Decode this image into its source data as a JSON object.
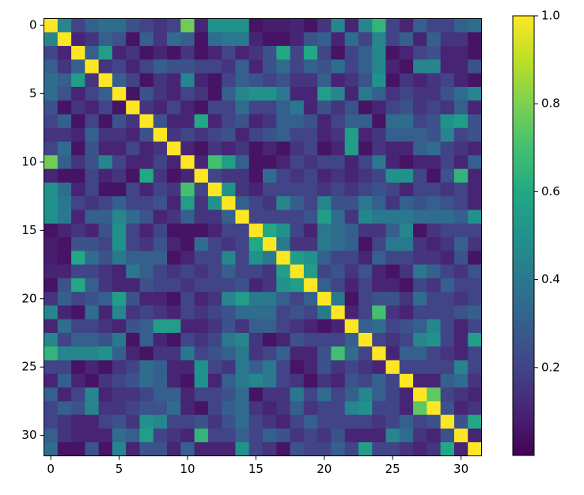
{
  "chart_data": {
    "type": "heatmap",
    "colormap": "viridis",
    "xlim": [
      -0.5,
      31.5
    ],
    "ylim": [
      -0.5,
      31.5
    ],
    "xticks": [
      0,
      5,
      10,
      15,
      20,
      25,
      30
    ],
    "yticks": [
      0,
      5,
      10,
      15,
      20,
      25,
      30
    ],
    "clim": [
      0,
      1
    ],
    "colorbar_ticks": [
      0.2,
      0.4,
      0.6,
      0.8,
      {
        "value": 1,
        "label": "1.0"
      }
    ],
    "values": [
      [
        1,
        0.45,
        0.2,
        0.3,
        0.35,
        0.35,
        0.25,
        0.2,
        0.15,
        0.2,
        0.78,
        0.1,
        0.5,
        0.5,
        0.5,
        0.05,
        0.08,
        0.08,
        0.1,
        0.05,
        0.15,
        0.45,
        0.1,
        0.45,
        0.65,
        0.2,
        0.1,
        0.3,
        0.2,
        0.2,
        0.3,
        0.35
      ],
      [
        0.45,
        1,
        0.1,
        0.15,
        0.3,
        0.25,
        0.05,
        0.3,
        0.15,
        0.35,
        0.3,
        0.05,
        0.35,
        0.4,
        0.4,
        0.1,
        0.05,
        0.05,
        0.1,
        0.25,
        0.3,
        0.1,
        0.35,
        0.2,
        0.45,
        0.2,
        0.3,
        0.1,
        0.3,
        0.15,
        0.15,
        0.05
      ],
      [
        0.2,
        0.1,
        1,
        0.3,
        0.55,
        0.1,
        0.15,
        0.05,
        0.1,
        0.05,
        0.15,
        0.05,
        0.1,
        0.2,
        0.1,
        0.15,
        0.25,
        0.6,
        0.2,
        0.6,
        0.2,
        0.05,
        0.2,
        0.3,
        0.45,
        0.05,
        0.1,
        0.2,
        0.25,
        0.1,
        0.1,
        0.05
      ],
      [
        0.3,
        0.15,
        0.3,
        1,
        0.15,
        0.2,
        0.1,
        0.2,
        0.3,
        0.25,
        0.25,
        0.2,
        0.2,
        0.15,
        0.3,
        0.1,
        0.25,
        0.35,
        0.2,
        0.3,
        0.25,
        0.35,
        0.2,
        0.3,
        0.45,
        0.1,
        0.05,
        0.45,
        0.45,
        0.1,
        0.1,
        0.25
      ],
      [
        0.35,
        0.3,
        0.55,
        0.15,
        1,
        0.3,
        0.2,
        0.05,
        0.15,
        0.1,
        0.45,
        0.1,
        0.05,
        0.2,
        0.3,
        0.25,
        0.2,
        0.25,
        0.15,
        0.15,
        0.3,
        0.1,
        0.15,
        0.25,
        0.5,
        0.05,
        0.15,
        0.1,
        0.15,
        0.2,
        0.1,
        0.05
      ],
      [
        0.35,
        0.25,
        0.1,
        0.2,
        0.3,
        1,
        0.05,
        0.25,
        0.15,
        0.1,
        0.2,
        0.15,
        0.05,
        0.3,
        0.45,
        0.5,
        0.5,
        0.4,
        0.1,
        0.1,
        0.55,
        0.45,
        0.1,
        0.4,
        0.3,
        0.15,
        0.2,
        0.15,
        0.15,
        0.25,
        0.35,
        0.45
      ],
      [
        0.25,
        0.05,
        0.15,
        0.1,
        0.2,
        0.05,
        1,
        0.15,
        0.1,
        0.2,
        0.1,
        0.05,
        0.2,
        0.2,
        0.35,
        0.2,
        0.2,
        0.3,
        0.4,
        0.1,
        0.25,
        0.15,
        0.25,
        0.05,
        0.1,
        0.2,
        0.25,
        0.15,
        0.2,
        0.15,
        0.3,
        0.1
      ],
      [
        0.2,
        0.3,
        0.05,
        0.2,
        0.05,
        0.25,
        0.15,
        1,
        0.25,
        0.1,
        0.1,
        0.6,
        0.1,
        0.2,
        0.25,
        0.1,
        0.15,
        0.3,
        0.3,
        0.25,
        0.1,
        0.2,
        0.3,
        0.3,
        0.05,
        0.35,
        0.35,
        0.2,
        0.25,
        0.5,
        0.55,
        0.25
      ],
      [
        0.15,
        0.15,
        0.1,
        0.3,
        0.15,
        0.15,
        0.1,
        0.25,
        1,
        0.15,
        0.2,
        0.15,
        0.2,
        0.25,
        0.1,
        0.2,
        0.25,
        0.3,
        0.2,
        0.2,
        0.1,
        0.15,
        0.55,
        0.1,
        0.15,
        0.3,
        0.3,
        0.3,
        0.25,
        0.45,
        0.2,
        0.25
      ],
      [
        0.2,
        0.35,
        0.05,
        0.25,
        0.1,
        0.1,
        0.2,
        0.1,
        0.15,
        1,
        0.1,
        0.05,
        0.15,
        0.1,
        0.15,
        0.05,
        0.1,
        0.05,
        0.15,
        0.2,
        0.05,
        0.1,
        0.55,
        0.05,
        0.15,
        0.1,
        0.1,
        0.3,
        0.35,
        0.2,
        0.15,
        0.1
      ],
      [
        0.78,
        0.3,
        0.15,
        0.25,
        0.45,
        0.2,
        0.1,
        0.1,
        0.2,
        0.1,
        1,
        0.1,
        0.7,
        0.55,
        0.3,
        0.05,
        0.05,
        0.1,
        0.2,
        0.15,
        0.2,
        0.2,
        0.1,
        0.2,
        0.4,
        0.1,
        0.05,
        0.1,
        0.1,
        0.2,
        0.1,
        0.3
      ],
      [
        0.1,
        0.05,
        0.05,
        0.2,
        0.1,
        0.15,
        0.05,
        0.6,
        0.15,
        0.05,
        0.1,
        1,
        0.2,
        0.15,
        0.15,
        0.05,
        0.35,
        0.2,
        0.15,
        0.2,
        0.1,
        0.15,
        0.1,
        0.15,
        0.2,
        0.5,
        0.5,
        0.2,
        0.05,
        0.25,
        0.65,
        0.1
      ],
      [
        0.5,
        0.35,
        0.1,
        0.2,
        0.05,
        0.05,
        0.2,
        0.1,
        0.2,
        0.15,
        0.7,
        0.2,
        1,
        0.5,
        0.15,
        0.1,
        0.2,
        0.2,
        0.2,
        0.2,
        0.15,
        0.2,
        0.15,
        0.2,
        0.25,
        0.2,
        0.1,
        0.2,
        0.2,
        0.15,
        0.2,
        0.1
      ],
      [
        0.5,
        0.4,
        0.2,
        0.15,
        0.2,
        0.3,
        0.2,
        0.2,
        0.25,
        0.1,
        0.55,
        0.15,
        0.5,
        1,
        0.3,
        0.2,
        0.15,
        0.45,
        0.3,
        0.2,
        0.45,
        0.25,
        0.25,
        0.4,
        0.3,
        0.15,
        0.3,
        0.25,
        0.3,
        0.25,
        0.2,
        0.1
      ],
      [
        0.5,
        0.4,
        0.1,
        0.3,
        0.3,
        0.45,
        0.35,
        0.25,
        0.1,
        0.15,
        0.3,
        0.15,
        0.15,
        0.3,
        1,
        0.2,
        0.2,
        0.2,
        0.2,
        0.25,
        0.55,
        0.35,
        0.15,
        0.45,
        0.4,
        0.4,
        0.4,
        0.35,
        0.35,
        0.35,
        0.3,
        0.5
      ],
      [
        0.05,
        0.1,
        0.15,
        0.1,
        0.25,
        0.5,
        0.2,
        0.1,
        0.2,
        0.05,
        0.05,
        0.05,
        0.1,
        0.2,
        0.2,
        1,
        0.6,
        0.5,
        0.2,
        0.1,
        0.4,
        0.35,
        0.3,
        0.15,
        0.15,
        0.3,
        0.45,
        0.05,
        0.15,
        0.2,
        0.2,
        0.2
      ],
      [
        0.08,
        0.05,
        0.25,
        0.25,
        0.2,
        0.5,
        0.2,
        0.15,
        0.25,
        0.1,
        0.05,
        0.35,
        0.2,
        0.15,
        0.2,
        0.6,
        1,
        0.4,
        0.15,
        0.15,
        0.4,
        0.35,
        0.3,
        0.05,
        0.2,
        0.4,
        0.4,
        0.15,
        0.1,
        0.15,
        0.3,
        0.15
      ],
      [
        0.08,
        0.05,
        0.6,
        0.35,
        0.25,
        0.4,
        0.3,
        0.3,
        0.3,
        0.05,
        0.1,
        0.2,
        0.2,
        0.45,
        0.2,
        0.5,
        0.4,
        1,
        0.55,
        0.5,
        0.3,
        0.2,
        0.2,
        0.1,
        0.3,
        0.2,
        0.2,
        0.15,
        0.15,
        0.1,
        0.25,
        0.05
      ],
      [
        0.1,
        0.1,
        0.2,
        0.2,
        0.15,
        0.1,
        0.4,
        0.3,
        0.2,
        0.15,
        0.2,
        0.15,
        0.2,
        0.3,
        0.2,
        0.2,
        0.15,
        0.55,
        1,
        0.55,
        0.2,
        0.25,
        0.15,
        0.25,
        0.1,
        0.05,
        0.15,
        0.4,
        0.3,
        0.2,
        0.15,
        0.25
      ],
      [
        0.05,
        0.25,
        0.6,
        0.3,
        0.15,
        0.1,
        0.1,
        0.25,
        0.2,
        0.2,
        0.15,
        0.2,
        0.2,
        0.2,
        0.25,
        0.1,
        0.15,
        0.5,
        0.55,
        1,
        0.3,
        0.2,
        0.1,
        0.2,
        0.1,
        0.1,
        0.05,
        0.2,
        0.15,
        0.3,
        0.2,
        0.2
      ],
      [
        0.15,
        0.3,
        0.2,
        0.25,
        0.3,
        0.55,
        0.25,
        0.1,
        0.1,
        0.05,
        0.2,
        0.1,
        0.15,
        0.45,
        0.55,
        0.4,
        0.4,
        0.3,
        0.2,
        0.3,
        1,
        0.4,
        0.05,
        0.2,
        0.25,
        0.25,
        0.15,
        0.35,
        0.2,
        0.2,
        0.15,
        0.2
      ],
      [
        0.45,
        0.1,
        0.05,
        0.35,
        0.1,
        0.45,
        0.15,
        0.2,
        0.15,
        0.1,
        0.2,
        0.15,
        0.2,
        0.25,
        0.35,
        0.35,
        0.35,
        0.2,
        0.25,
        0.2,
        0.4,
        1,
        0.1,
        0.2,
        0.7,
        0.15,
        0.1,
        0.2,
        0.2,
        0.2,
        0.25,
        0.3
      ],
      [
        0.1,
        0.35,
        0.2,
        0.2,
        0.15,
        0.1,
        0.25,
        0.3,
        0.55,
        0.55,
        0.1,
        0.1,
        0.15,
        0.25,
        0.15,
        0.3,
        0.3,
        0.2,
        0.15,
        0.1,
        0.05,
        0.1,
        1,
        0.3,
        0.35,
        0.2,
        0.25,
        0.3,
        0.45,
        0.2,
        0.1,
        0.2
      ],
      [
        0.45,
        0.2,
        0.3,
        0.3,
        0.25,
        0.4,
        0.05,
        0.3,
        0.1,
        0.05,
        0.2,
        0.15,
        0.2,
        0.4,
        0.45,
        0.15,
        0.05,
        0.1,
        0.25,
        0.2,
        0.2,
        0.2,
        0.3,
        1,
        0.2,
        0.15,
        0.2,
        0.45,
        0.5,
        0.2,
        0.1,
        0.55
      ],
      [
        0.65,
        0.45,
        0.45,
        0.45,
        0.5,
        0.3,
        0.1,
        0.05,
        0.15,
        0.15,
        0.4,
        0.2,
        0.25,
        0.3,
        0.4,
        0.15,
        0.2,
        0.3,
        0.1,
        0.1,
        0.25,
        0.7,
        0.35,
        0.2,
        1,
        0.1,
        0.3,
        0.3,
        0.2,
        0.15,
        0.1,
        0.2
      ],
      [
        0.2,
        0.2,
        0.05,
        0.1,
        0.05,
        0.15,
        0.2,
        0.35,
        0.3,
        0.1,
        0.1,
        0.5,
        0.2,
        0.15,
        0.4,
        0.3,
        0.4,
        0.2,
        0.05,
        0.1,
        0.25,
        0.15,
        0.2,
        0.15,
        0.1,
        1,
        0.2,
        0.2,
        0.2,
        0.2,
        0.45,
        0.2
      ],
      [
        0.1,
        0.3,
        0.1,
        0.05,
        0.15,
        0.2,
        0.25,
        0.35,
        0.3,
        0.1,
        0.05,
        0.5,
        0.1,
        0.3,
        0.4,
        0.45,
        0.4,
        0.2,
        0.15,
        0.05,
        0.15,
        0.1,
        0.25,
        0.2,
        0.3,
        0.2,
        1,
        0.1,
        0.1,
        0.3,
        0.35,
        0.15
      ],
      [
        0.3,
        0.1,
        0.2,
        0.45,
        0.1,
        0.15,
        0.15,
        0.2,
        0.3,
        0.3,
        0.1,
        0.2,
        0.2,
        0.25,
        0.35,
        0.05,
        0.15,
        0.15,
        0.4,
        0.2,
        0.35,
        0.2,
        0.3,
        0.45,
        0.3,
        0.2,
        0.1,
        1,
        0.75,
        0.2,
        0.15,
        0.1
      ],
      [
        0.2,
        0.3,
        0.25,
        0.45,
        0.15,
        0.15,
        0.2,
        0.25,
        0.25,
        0.35,
        0.1,
        0.05,
        0.2,
        0.3,
        0.35,
        0.15,
        0.1,
        0.15,
        0.3,
        0.15,
        0.2,
        0.2,
        0.45,
        0.5,
        0.2,
        0.2,
        0.1,
        0.75,
        1,
        0.25,
        0.1,
        0.15
      ],
      [
        0.2,
        0.15,
        0.1,
        0.1,
        0.2,
        0.25,
        0.15,
        0.5,
        0.45,
        0.2,
        0.2,
        0.25,
        0.15,
        0.25,
        0.35,
        0.2,
        0.15,
        0.1,
        0.2,
        0.3,
        0.2,
        0.2,
        0.2,
        0.2,
        0.15,
        0.2,
        0.3,
        0.2,
        0.25,
        1,
        0.25,
        0.6
      ],
      [
        0.3,
        0.15,
        0.1,
        0.1,
        0.1,
        0.35,
        0.3,
        0.55,
        0.2,
        0.15,
        0.1,
        0.65,
        0.2,
        0.2,
        0.3,
        0.2,
        0.3,
        0.25,
        0.15,
        0.2,
        0.15,
        0.25,
        0.1,
        0.1,
        0.1,
        0.45,
        0.35,
        0.15,
        0.1,
        0.25,
        1,
        0.1
      ],
      [
        0.35,
        0.05,
        0.05,
        0.25,
        0.05,
        0.45,
        0.1,
        0.25,
        0.25,
        0.1,
        0.3,
        0.1,
        0.1,
        0.1,
        0.5,
        0.2,
        0.15,
        0.05,
        0.25,
        0.2,
        0.2,
        0.3,
        0.2,
        0.55,
        0.2,
        0.2,
        0.15,
        0.1,
        0.15,
        0.6,
        0.1,
        1
      ]
    ]
  }
}
